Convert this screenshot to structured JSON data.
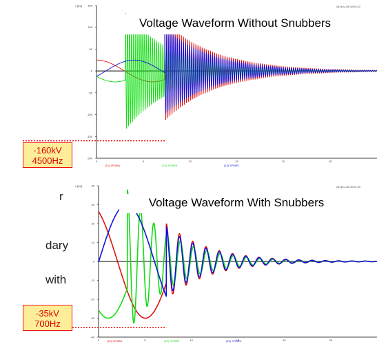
{
  "side_text": [
    "r",
    "dary",
    "with"
  ],
  "callouts": [
    {
      "line1": "-160kV",
      "line2": "4500Hz"
    },
    {
      "line1": "-35kV",
      "line2": "700Hz"
    }
  ],
  "colors": {
    "series1": "#dd1111",
    "series2": "#11dd11",
    "series3": "#1111dd",
    "callout_fill": "#ffee99",
    "callout_border": "#ee1111"
  },
  "chart_data": [
    {
      "type": "line",
      "title": "Voltage Waveform Without Snubbers",
      "ylabel": "v [kV]",
      "timestamp": "08-Nov-08 08:55:22",
      "xlim": [
        0,
        30
      ],
      "ylim": [
        -200,
        150
      ],
      "yticks": [
        150,
        100,
        50,
        0,
        -50,
        -100,
        -150,
        -200
      ],
      "xticks": [
        0,
        5,
        10,
        15,
        20,
        25
      ],
      "series": [
        {
          "name": "(13) XFMRA",
          "color": "#dd1111",
          "pre": {
            "amp": 25,
            "phase": 0
          },
          "osc": {
            "t0": 7.3,
            "amp": 115,
            "decay": 0.19,
            "freq": 4.5
          }
        },
        {
          "name": "(23) XFMRB",
          "color": "#11dd11",
          "pre": {
            "amp": 25,
            "phase": 2.09
          },
          "osc": {
            "t0": 3.1,
            "amp": 135,
            "decay": 0.2,
            "freq": 4.5
          }
        },
        {
          "name": "(13) XFMRC",
          "color": "#1111dd",
          "pre": {
            "amp": 25,
            "phase": 4.19
          },
          "osc": {
            "t0": 7.3,
            "amp": 100,
            "decay": 0.2,
            "freq": 4.5
          }
        }
      ],
      "marker_value": -160
    },
    {
      "type": "line",
      "title": "Voltage Waveform With Snubbers",
      "ylabel": "v [kV]",
      "timestamp": "08-Nov-08 08:54:39",
      "xlim": [
        0,
        30
      ],
      "ylim": [
        -40,
        40
      ],
      "yticks": [
        40,
        30,
        20,
        10,
        0,
        -10,
        -20,
        -30,
        -40
      ],
      "xticks": [
        0,
        5,
        10,
        15,
        20,
        25
      ],
      "series": [
        {
          "name": "(13) XFMRA",
          "color": "#dd1111",
          "pre": {
            "amp": 30,
            "phase": 0.5
          },
          "osc": {
            "t0": 7.3,
            "amp": 20,
            "decay": 0.22,
            "freq": 0.7
          }
        },
        {
          "name": "(23) XFMRB",
          "color": "#11dd11",
          "pre": {
            "amp": 30,
            "phase": 2.6
          },
          "osc": {
            "t0": 3.1,
            "amp": 38,
            "decay": 0.22,
            "freq": 0.7
          }
        },
        {
          "name": "(23) XFMRC",
          "color": "#1111dd",
          "pre": {
            "amp": 30,
            "phase": 4.7
          },
          "osc": {
            "t0": 7.3,
            "amp": 18,
            "decay": 0.22,
            "freq": 0.7
          }
        }
      ],
      "marker_value": -35
    }
  ]
}
